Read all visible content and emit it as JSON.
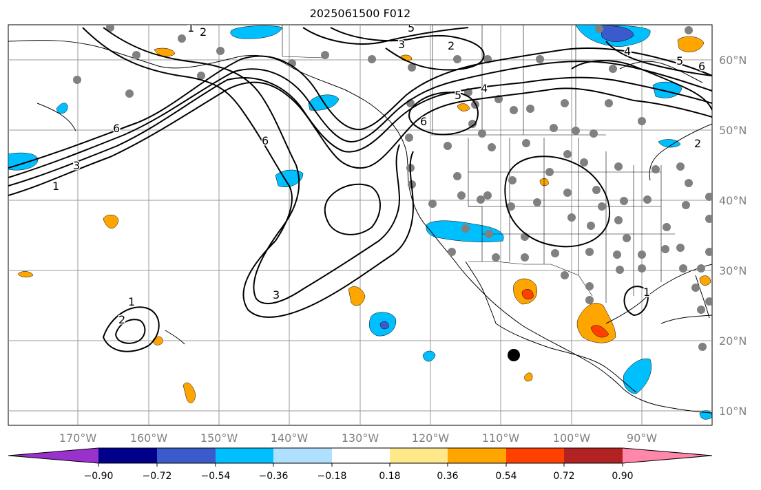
{
  "title": "2025061500 F012",
  "lat_ticks": [
    "60°N",
    "50°N",
    "40°N",
    "30°N",
    "20°N",
    "10°N"
  ],
  "lon_ticks": [
    "170°W",
    "160°W",
    "150°W",
    "140°W",
    "130°W",
    "120°W",
    "110°W",
    "100°W",
    "90°W"
  ],
  "colorbar": {
    "ticks": [
      "−0.90",
      "−0.72",
      "−0.54",
      "−0.36",
      "−0.18",
      "0.18",
      "0.36",
      "0.54",
      "0.72",
      "0.90"
    ],
    "colors": [
      "#9932cc",
      "#00008b",
      "#3b5bcc",
      "#00bfff",
      "#b0e0ff",
      "#ffffff",
      "#ffe88a",
      "#ffa500",
      "#ff4000",
      "#b22222",
      "#ff88aa"
    ]
  },
  "contour_labels": [
    "1",
    "2",
    "5",
    "3",
    "2",
    "5",
    "4",
    "6",
    "4",
    "5",
    "6",
    "2",
    "1",
    "3",
    "6",
    "6",
    "3",
    "1",
    "2",
    "1"
  ],
  "colors": {
    "contour": "#000000",
    "station": "#808080",
    "grid": "#999999",
    "coast": "#000000"
  }
}
